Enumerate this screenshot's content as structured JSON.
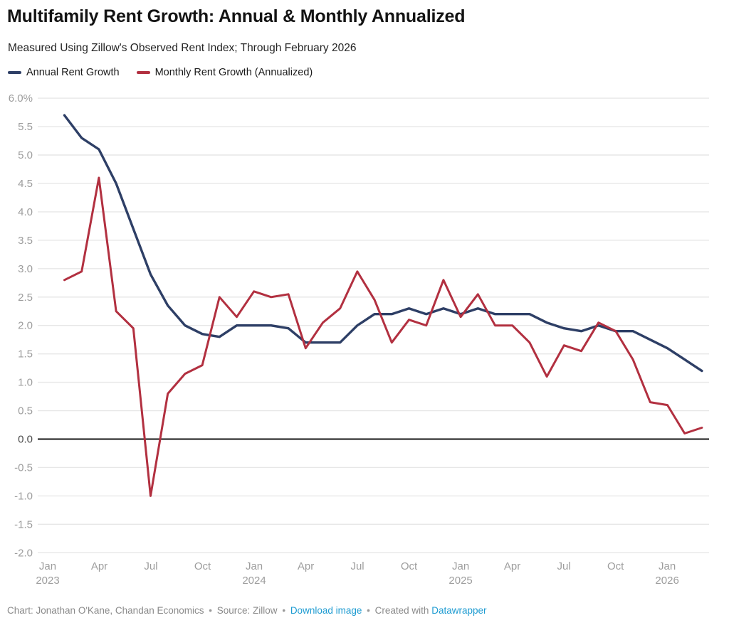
{
  "header": {
    "title": "Multifamily Rent Growth: Annual & Monthly Annualized",
    "subtitle": "Measured Using Zillow's Observed Rent Index; Through February 2026"
  },
  "footer": {
    "chart_credit": "Chart: Jonathan O'Kane, Chandan Economics",
    "sep": "•",
    "source": "Source: Zillow",
    "download_label": "Download image",
    "created_with": "Created with",
    "builder_link_label": "Datawrapper"
  },
  "colors": {
    "annual": "#2e3f66",
    "monthly": "#b23040",
    "grid": "#e7e7e7",
    "zero_line": "#141414",
    "axis_label": "#9d9d9d",
    "axis_label_zero": "#4a4a4a"
  },
  "chart_data": {
    "type": "line",
    "title": "Multifamily Rent Growth: Annual & Monthly Annualized",
    "subtitle": "Measured Using Zillow's Observed Rent Index; Through February 2026",
    "grid": "horizontal",
    "legend_position": "top-left",
    "ylim": [
      -2.0,
      6.0
    ],
    "ytick_step": 0.5,
    "ytick_top_label": "6.0%",
    "zero_baseline": true,
    "categories": [
      "Jan 2023",
      "Feb 2023",
      "Mar 2023",
      "Apr 2023",
      "May 2023",
      "Jun 2023",
      "Jul 2023",
      "Aug 2023",
      "Sep 2023",
      "Oct 2023",
      "Nov 2023",
      "Dec 2023",
      "Jan 2024",
      "Feb 2024",
      "Mar 2024",
      "Apr 2024",
      "May 2024",
      "Jun 2024",
      "Jul 2024",
      "Aug 2024",
      "Sep 2024",
      "Oct 2024",
      "Nov 2024",
      "Dec 2024",
      "Jan 2025",
      "Feb 2025",
      "Mar 2025",
      "Apr 2025",
      "May 2025",
      "Jun 2025",
      "Jul 2025",
      "Aug 2025",
      "Sep 2025",
      "Oct 2025",
      "Nov 2025",
      "Dec 2025",
      "Jan 2026",
      "Feb 2026"
    ],
    "series": [
      {
        "name": "Annual Rent Growth",
        "color": "#2e3f66",
        "values": [
          5.7,
          5.3,
          5.1,
          4.5,
          3.7,
          2.9,
          2.35,
          2.0,
          1.85,
          1.8,
          2.0,
          2.0,
          2.0,
          1.95,
          1.7,
          1.7,
          1.7,
          2.0,
          2.2,
          2.2,
          2.3,
          2.2,
          2.3,
          2.2,
          2.3,
          2.2,
          2.2,
          2.2,
          2.05,
          1.95,
          1.9,
          2.0,
          1.9,
          1.9,
          1.75,
          1.6,
          1.4,
          1.2
        ]
      },
      {
        "name": "Monthly Rent Growth (Annualized)",
        "color": "#b23040",
        "values": [
          2.8,
          2.95,
          4.6,
          2.25,
          1.95,
          -1.0,
          0.8,
          1.15,
          1.3,
          2.5,
          2.15,
          2.6,
          2.5,
          2.55,
          1.6,
          2.05,
          2.3,
          2.95,
          2.45,
          1.7,
          2.1,
          2.0,
          2.8,
          2.15,
          2.55,
          2.0,
          2.0,
          1.7,
          1.1,
          1.65,
          1.55,
          2.05,
          1.9,
          1.4,
          0.65,
          0.6,
          0.1,
          0.2
        ]
      }
    ],
    "xticks": [
      {
        "month_index": 0,
        "label": "Jan",
        "year": "2023"
      },
      {
        "month_index": 3,
        "label": "Apr",
        "year": ""
      },
      {
        "month_index": 6,
        "label": "Jul",
        "year": ""
      },
      {
        "month_index": 9,
        "label": "Oct",
        "year": ""
      },
      {
        "month_index": 12,
        "label": "Jan",
        "year": "2024"
      },
      {
        "month_index": 15,
        "label": "Apr",
        "year": ""
      },
      {
        "month_index": 18,
        "label": "Jul",
        "year": ""
      },
      {
        "month_index": 21,
        "label": "Oct",
        "year": ""
      },
      {
        "month_index": 24,
        "label": "Jan",
        "year": "2025"
      },
      {
        "month_index": 27,
        "label": "Apr",
        "year": ""
      },
      {
        "month_index": 30,
        "label": "Jul",
        "year": ""
      },
      {
        "month_index": 33,
        "label": "Oct",
        "year": ""
      },
      {
        "month_index": 36,
        "label": "Jan",
        "year": "2026"
      }
    ]
  }
}
